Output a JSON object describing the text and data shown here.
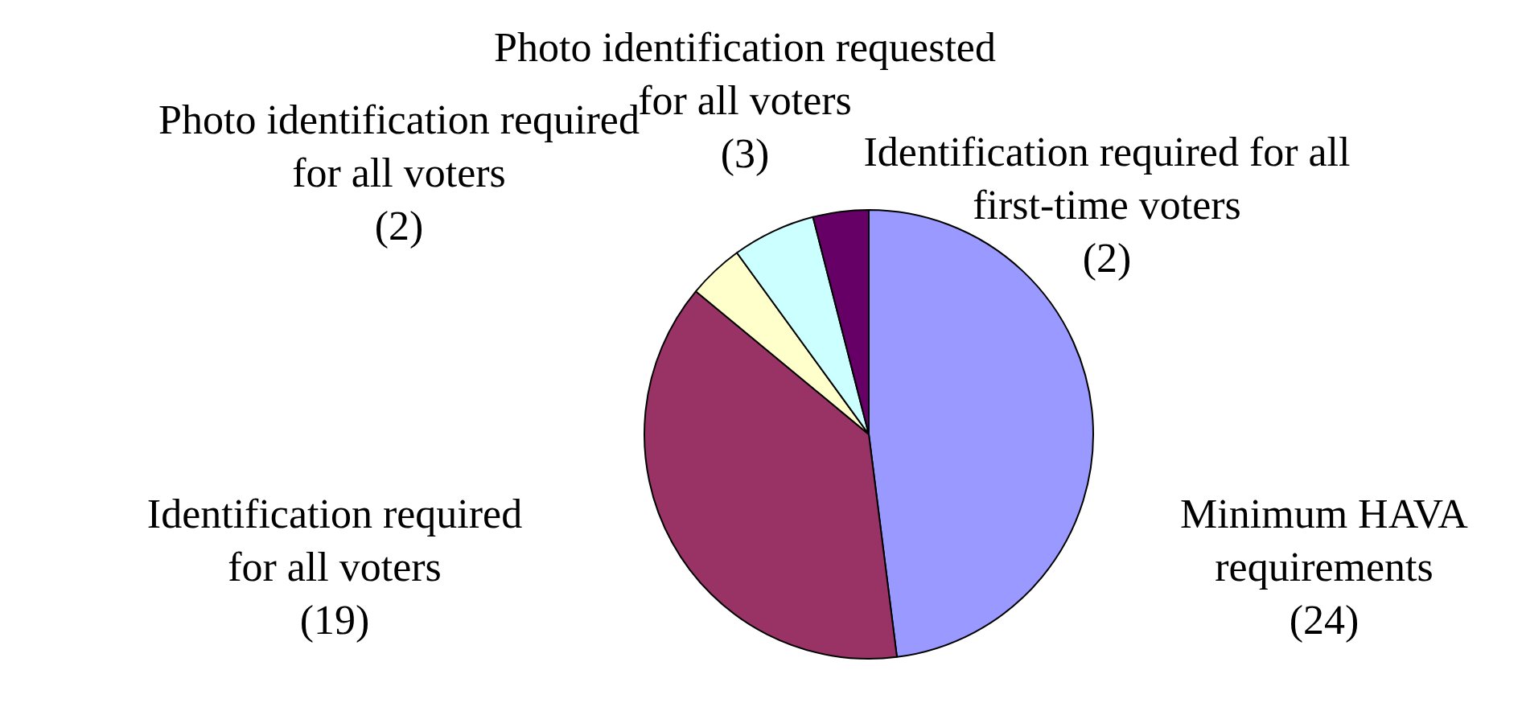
{
  "chart_data": {
    "type": "pie",
    "categories": [
      "Minimum HAVA requirements",
      "Identification required for all voters",
      "Photo identification required for all voters",
      "Photo identification requested for all voters",
      "Identification required for all first-time voters"
    ],
    "values": [
      24,
      19,
      2,
      3,
      2
    ],
    "colors": [
      "#9999ff",
      "#993366",
      "#ffffcc",
      "#ccffff",
      "#660066"
    ],
    "value_labels": [
      "(24)",
      "(19)",
      "(2)",
      "(3)",
      "(2)"
    ],
    "legend": false
  }
}
